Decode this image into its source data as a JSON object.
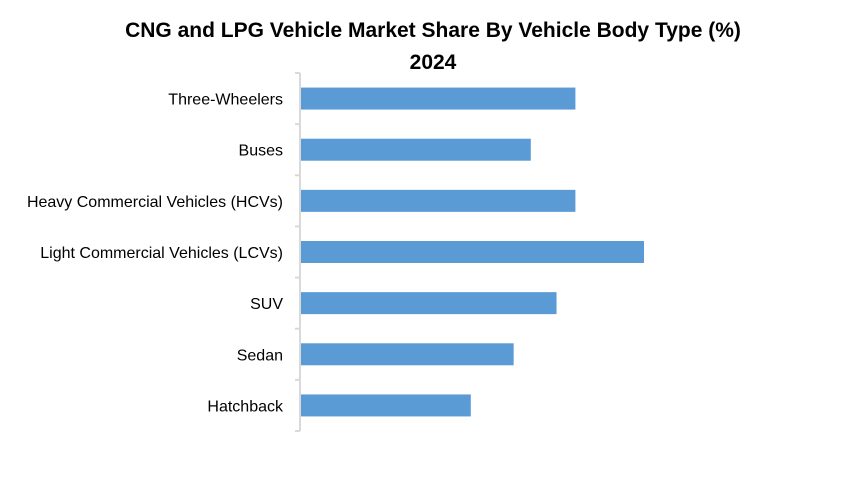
{
  "chart_data": {
    "type": "bar",
    "orientation": "horizontal",
    "title": "CNG and LPG Vehicle Market Share By Vehicle Body Type (%)",
    "subtitle": "2024",
    "xlabel": "",
    "ylabel": "",
    "categories": [
      "Three-Wheelers",
      "Buses",
      "Heavy Commercial Vehicles (HCVs)",
      "Light Commercial Vehicles (LCVs)",
      "SUV",
      "Sedan",
      "Hatchback"
    ],
    "values": [
      16.0,
      13.4,
      16.0,
      20.0,
      14.9,
      12.4,
      9.9
    ],
    "value_note": "No value axis or data labels shown; values are relative estimates",
    "xlim": [
      0,
      20
    ],
    "grid": false,
    "legend": "none",
    "bar_color": "#5b9bd5",
    "axis_color": "#d9d9d9"
  }
}
